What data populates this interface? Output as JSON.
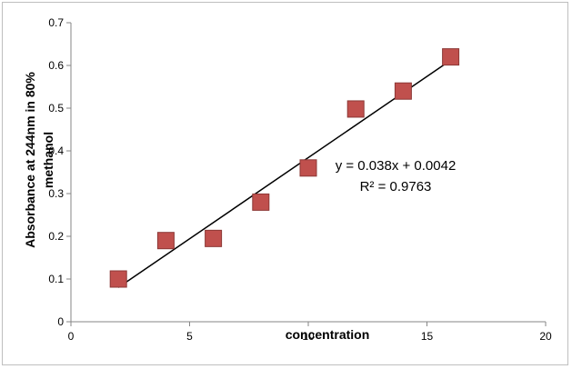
{
  "chart_data": {
    "type": "scatter",
    "title": "",
    "xlabel": "concentration",
    "ylabel_lines": [
      "Absorbance at 244nm in 80%",
      "methanol"
    ],
    "xlim": [
      0,
      20
    ],
    "ylim": [
      0,
      0.7
    ],
    "xticks": [
      0,
      5,
      10,
      15,
      20
    ],
    "yticks": [
      0,
      0.1,
      0.2,
      0.3,
      0.4,
      0.5,
      0.6,
      0.7
    ],
    "grid": false,
    "series": [
      {
        "x": [
          2,
          4,
          6,
          8,
          10,
          12,
          14,
          16
        ],
        "y": [
          0.1,
          0.19,
          0.195,
          0.28,
          0.36,
          0.498,
          0.54,
          0.62
        ],
        "marker_color": "#c0504d",
        "marker_edge": "#8c3836"
      }
    ],
    "trendline": {
      "slope": 0.038,
      "intercept": 0.0042,
      "x_range": [
        2,
        16
      ],
      "color": "#000000",
      "equation": "y = 0.038x + 0.0042",
      "r_squared": "R² = 0.9763"
    }
  }
}
